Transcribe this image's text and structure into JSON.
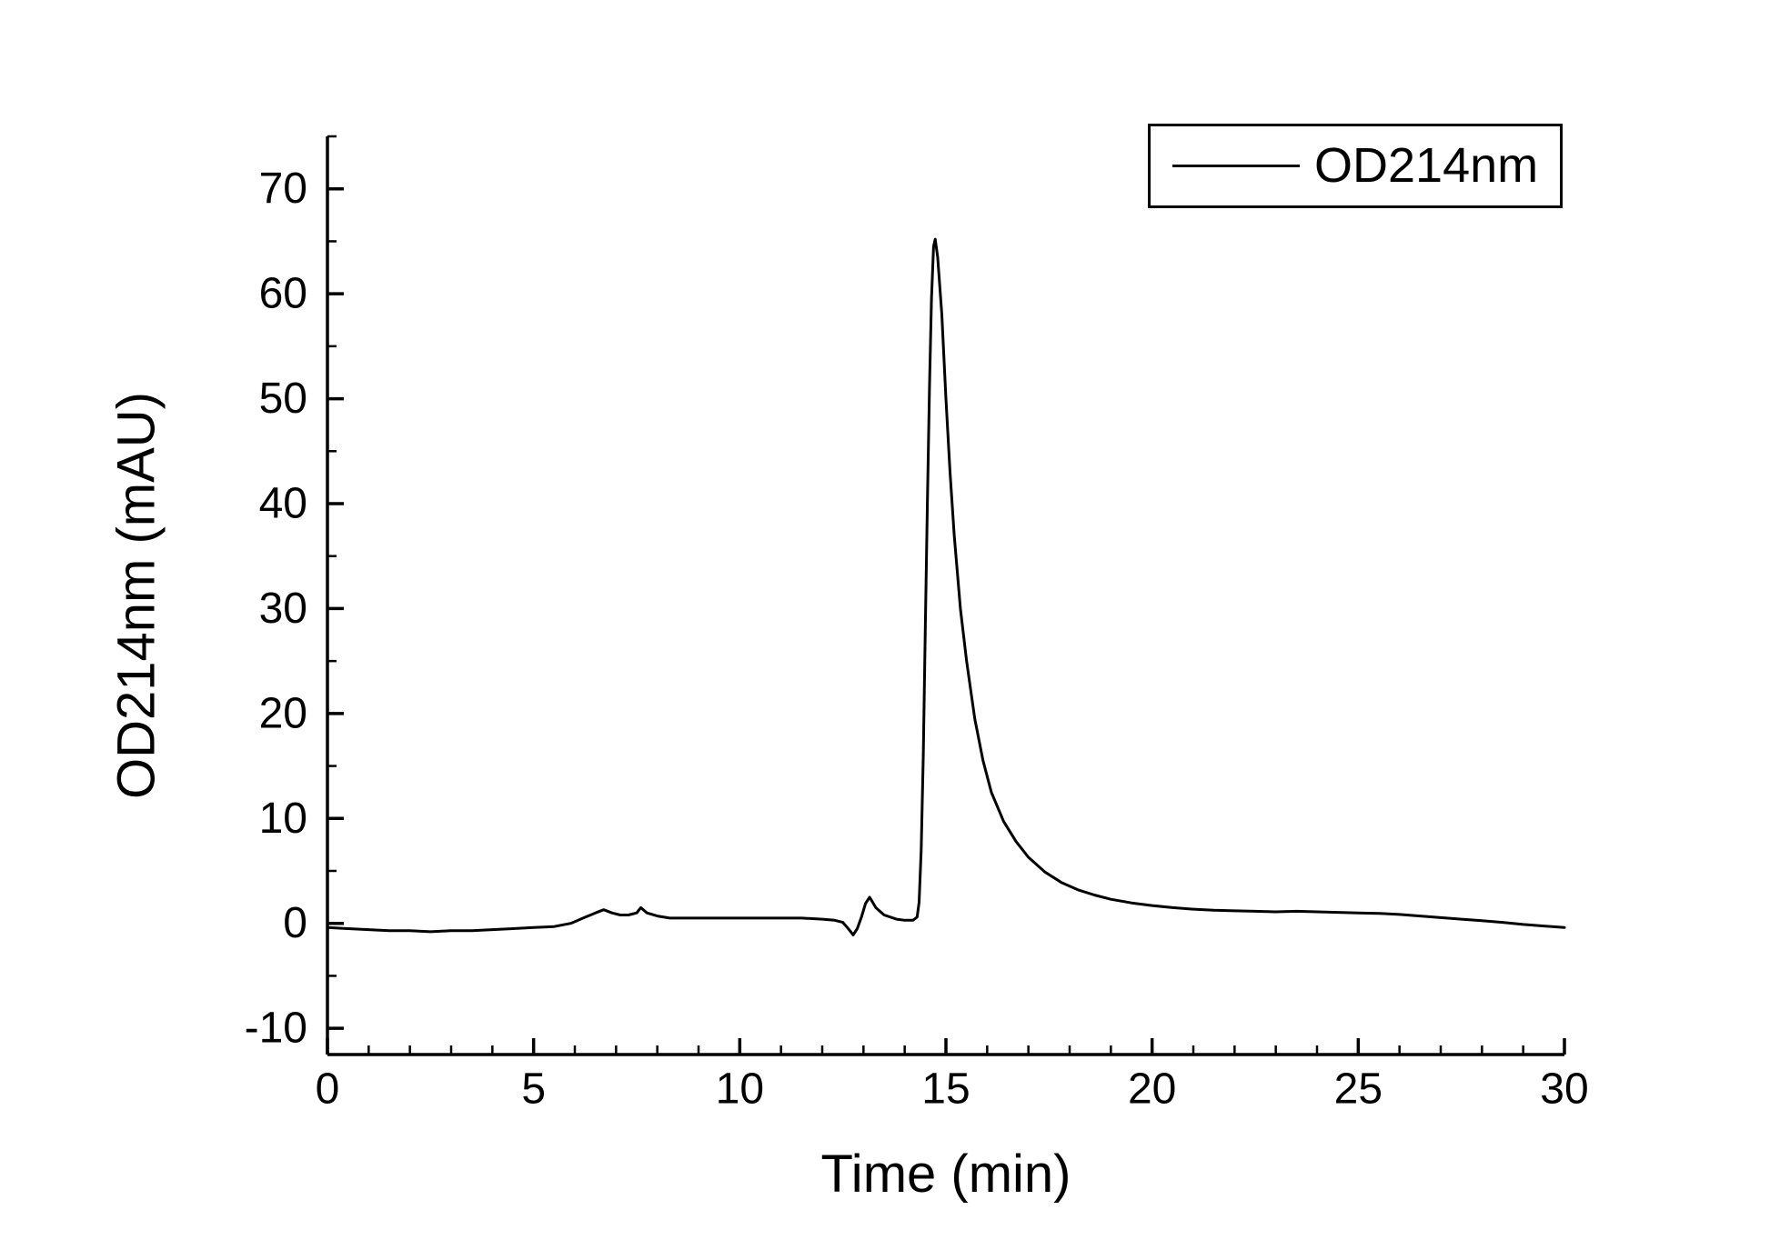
{
  "chart_data": {
    "type": "line",
    "title": "",
    "xlabel": "Time (min)",
    "ylabel": "OD214nm (mAU)",
    "xlim": [
      0,
      30
    ],
    "ylim": [
      -12.5,
      75
    ],
    "x_major_ticks": [
      0,
      5,
      10,
      15,
      20,
      25,
      30
    ],
    "x_minor_step": 1,
    "y_major_ticks": [
      -10,
      0,
      10,
      20,
      30,
      40,
      50,
      60,
      70
    ],
    "y_minor_step": 5,
    "grid": false,
    "legend_position": "top-right",
    "line_color": "#000000",
    "background": "#ffffff",
    "series": [
      {
        "name": "OD214nm",
        "x": [
          0,
          0.5,
          1,
          1.5,
          2,
          2.5,
          3,
          3.5,
          4,
          4.5,
          5,
          5.5,
          5.9,
          6.2,
          6.5,
          6.7,
          6.9,
          7.1,
          7.3,
          7.5,
          7.6,
          7.75,
          8,
          8.3,
          8.7,
          9,
          9.5,
          10,
          10.5,
          11,
          11.5,
          12,
          12.3,
          12.5,
          12.65,
          12.75,
          12.85,
          12.95,
          13.05,
          13.15,
          13.3,
          13.5,
          13.8,
          14,
          14.2,
          14.3,
          14.35,
          14.4,
          14.45,
          14.5,
          14.55,
          14.6,
          14.65,
          14.7,
          14.74,
          14.8,
          14.9,
          15,
          15.1,
          15.2,
          15.35,
          15.5,
          15.7,
          15.9,
          16.1,
          16.4,
          16.7,
          17,
          17.4,
          17.8,
          18.2,
          18.6,
          19,
          19.5,
          20,
          20.5,
          21,
          21.5,
          22,
          22.5,
          23,
          23.5,
          24,
          24.5,
          25,
          25.5,
          26,
          26.5,
          27,
          27.5,
          28,
          28.5,
          29,
          29.5,
          30
        ],
        "y": [
          -0.4,
          -0.5,
          -0.6,
          -0.7,
          -0.7,
          -0.8,
          -0.7,
          -0.7,
          -0.6,
          -0.5,
          -0.4,
          -0.3,
          0,
          0.5,
          1.0,
          1.3,
          1.0,
          0.8,
          0.8,
          1.0,
          1.5,
          1.0,
          0.7,
          0.5,
          0.5,
          0.5,
          0.5,
          0.5,
          0.5,
          0.5,
          0.5,
          0.4,
          0.3,
          0.1,
          -0.6,
          -1.1,
          -0.5,
          0.6,
          1.9,
          2.5,
          1.5,
          0.8,
          0.4,
          0.3,
          0.3,
          0.6,
          2,
          7,
          16,
          28,
          40,
          51,
          59.5,
          64.5,
          65.2,
          63.5,
          58,
          50,
          43,
          37,
          30,
          25,
          19.5,
          15.5,
          12.5,
          9.7,
          7.8,
          6.3,
          4.9,
          3.9,
          3.2,
          2.7,
          2.3,
          1.95,
          1.7,
          1.5,
          1.35,
          1.25,
          1.2,
          1.15,
          1.1,
          1.15,
          1.1,
          1.05,
          1.0,
          0.95,
          0.85,
          0.7,
          0.55,
          0.4,
          0.25,
          0.1,
          -0.1,
          -0.25,
          -0.4
        ]
      }
    ]
  }
}
